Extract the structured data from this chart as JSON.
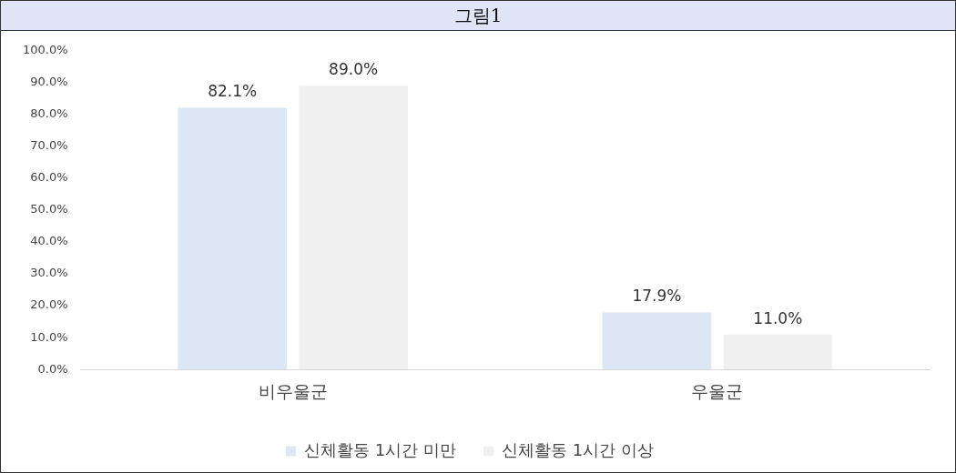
{
  "chart_data": {
    "type": "bar",
    "title": "그림1",
    "categories": [
      "비우울군",
      "우울군"
    ],
    "series": [
      {
        "name": "신체활동 1시간 미만",
        "color": "#dce6f4",
        "values": [
          82.1,
          17.9
        ],
        "value_labels": [
          "82.1%",
          "17.9%"
        ]
      },
      {
        "name": "신체활동 1시간 이상",
        "color": "#f0f0f0",
        "values": [
          89.0,
          11.0
        ],
        "value_labels": [
          "89.0%",
          "11.0%"
        ]
      }
    ],
    "ylim": [
      0,
      100
    ],
    "yticks": [
      {
        "value": 0,
        "label": "0.0%"
      },
      {
        "value": 10,
        "label": "10.0%"
      },
      {
        "value": 20,
        "label": "20.0%"
      },
      {
        "value": 30,
        "label": "30.0%"
      },
      {
        "value": 40,
        "label": "40.0%"
      },
      {
        "value": 50,
        "label": "50.0%"
      },
      {
        "value": 60,
        "label": "60.0%"
      },
      {
        "value": 70,
        "label": "70.0%"
      },
      {
        "value": 80,
        "label": "80.0%"
      },
      {
        "value": 90,
        "label": "90.0%"
      },
      {
        "value": 100,
        "label": "100.0%"
      }
    ],
    "grid": false,
    "legend": "bottom"
  }
}
